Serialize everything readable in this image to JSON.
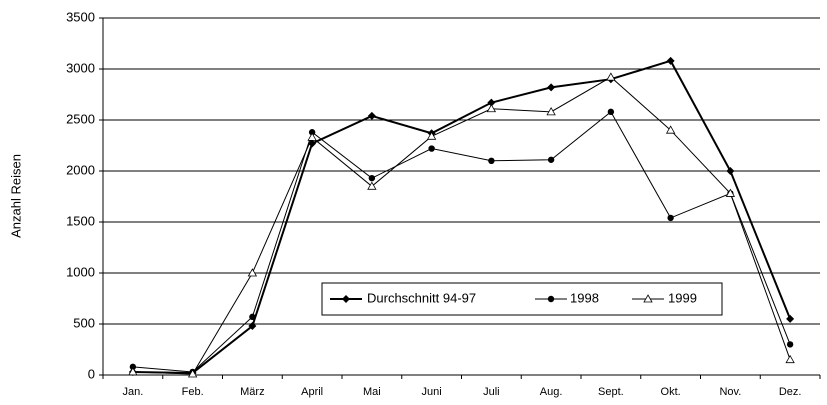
{
  "chart_data": {
    "type": "line",
    "y_label": "Anzahl Reisen",
    "categories": [
      "Jan.",
      "Feb.",
      "März",
      "April",
      "Mai",
      "Juni",
      "Juli",
      "Aug.",
      "Sept.",
      "Okt.",
      "Nov.",
      "Dez."
    ],
    "series": [
      {
        "name": "Durchschnitt 94-97",
        "color": "#000000",
        "marker": "diamond",
        "values": [
          30,
          20,
          480,
          2270,
          2540,
          2370,
          2670,
          2820,
          2900,
          3080,
          2000,
          550
        ]
      },
      {
        "name": "1998",
        "color": "#000000",
        "marker": "circle",
        "values": [
          80,
          30,
          570,
          2380,
          1930,
          2220,
          2100,
          2110,
          2580,
          1540,
          1780,
          300
        ]
      },
      {
        "name": "1999",
        "color": "#000000",
        "marker": "triangle",
        "values": [
          30,
          10,
          1000,
          2330,
          1850,
          2340,
          2610,
          2580,
          2920,
          2400,
          1780,
          150
        ]
      }
    ],
    "ylim": [
      0,
      3500
    ],
    "yticks": [
      0,
      500,
      1000,
      1500,
      2000,
      2500,
      3000,
      3500
    ],
    "grid": true
  }
}
